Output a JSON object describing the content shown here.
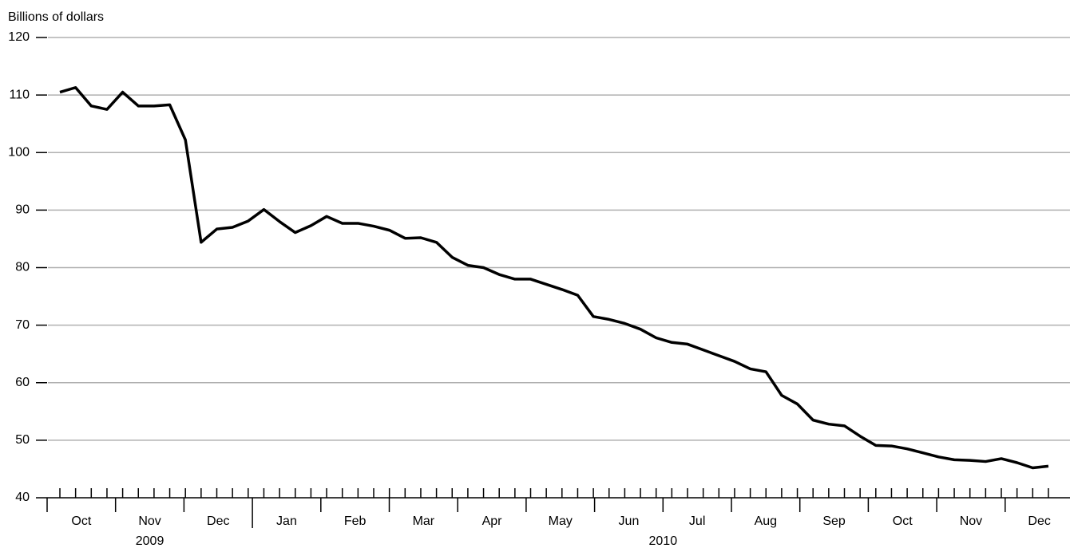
{
  "chart_data": {
    "type": "line",
    "y_label": "Billions of dollars",
    "months": [
      "Oct",
      "Nov",
      "Dec",
      "Jan",
      "Feb",
      "Mar",
      "Apr",
      "May",
      "Jun",
      "Jul",
      "Aug",
      "Sep",
      "Oct",
      "Nov",
      "Dec"
    ],
    "years": [
      "2009",
      "2010"
    ],
    "values": [
      110.5,
      111.3,
      108.1,
      107.5,
      110.5,
      108.1,
      108.1,
      108.3,
      102.2,
      84.4,
      86.7,
      87.0,
      88.1,
      90.1,
      88.0,
      86.1,
      87.3,
      88.9,
      87.7,
      87.7,
      87.2,
      86.5,
      85.1,
      85.2,
      84.4,
      81.8,
      80.4,
      80.0,
      78.8,
      78.0,
      78.0,
      77.1,
      76.2,
      75.2,
      71.5,
      71.0,
      70.3,
      69.3,
      67.8,
      67.0,
      66.7,
      65.7,
      64.7,
      63.7,
      62.4,
      61.9,
      57.8,
      56.3,
      53.5,
      52.8,
      52.5,
      50.7,
      49.1,
      49.0,
      48.5,
      47.8,
      47.1,
      46.6,
      46.5,
      46.3,
      46.8,
      46.1,
      45.2,
      45.5
    ],
    "color": "#000000",
    "ylim": [
      40,
      120
    ],
    "yticks": [
      40,
      50,
      60,
      70,
      80,
      90,
      100,
      110,
      120
    ],
    "grid": true
  }
}
